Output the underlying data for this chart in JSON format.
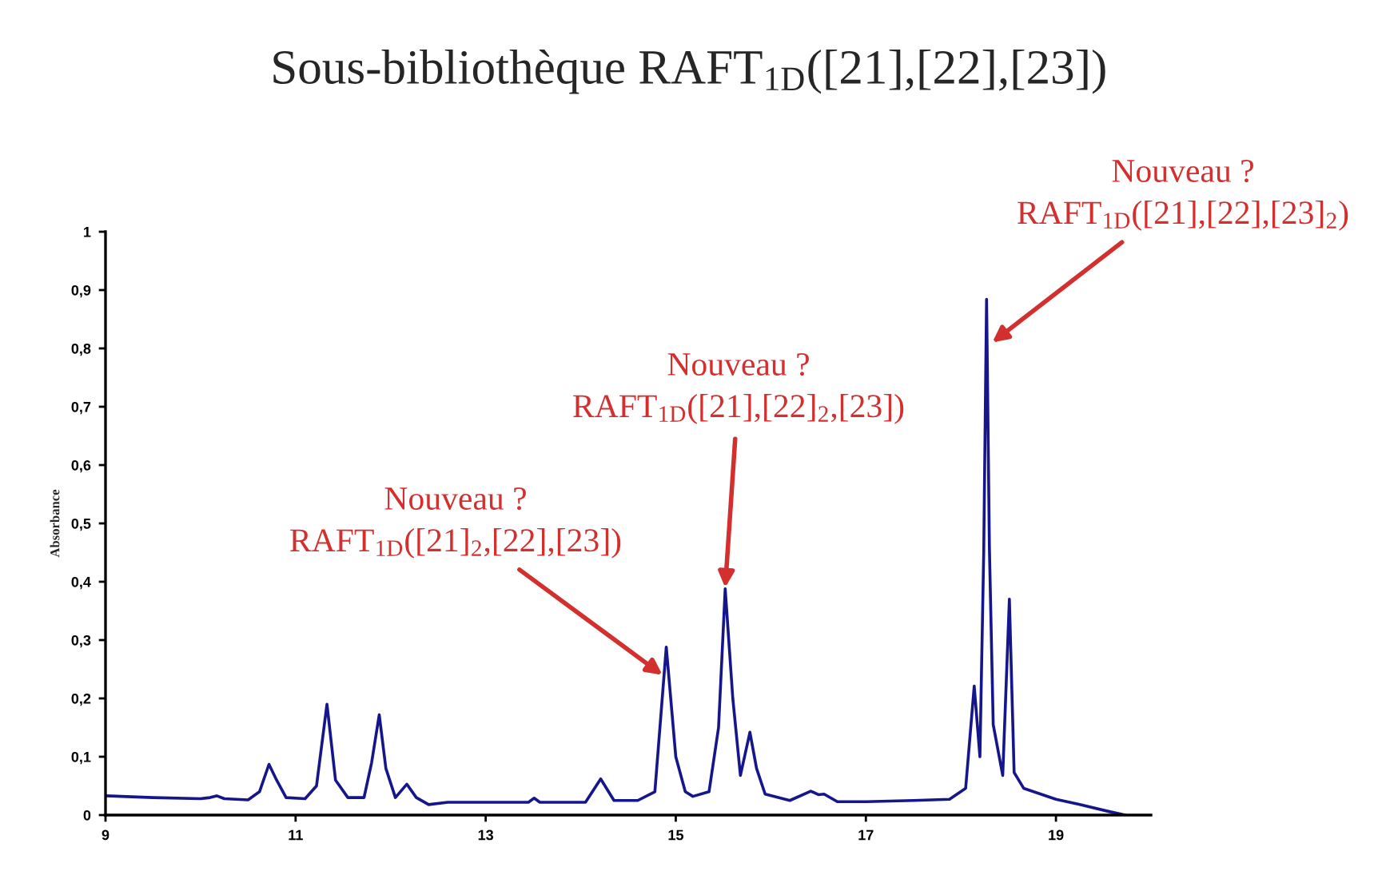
{
  "chart_data": {
    "type": "line",
    "title": "Sous-bibliothèque RAFT$_{1D}$([21],[22],[23])",
    "ylabel": "Absorbance",
    "x": [
      9.0,
      9.5,
      10.0,
      10.1,
      10.17,
      10.25,
      10.5,
      10.62,
      10.72,
      10.8,
      10.9,
      11.1,
      11.22,
      11.33,
      11.42,
      11.55,
      11.72,
      11.8,
      11.88,
      11.95,
      12.05,
      12.17,
      12.27,
      12.4,
      12.6,
      13.0,
      13.45,
      13.51,
      13.57,
      14.05,
      14.21,
      14.35,
      14.6,
      14.78,
      14.9,
      15.0,
      15.1,
      15.18,
      15.35,
      15.45,
      15.52,
      15.6,
      15.68,
      15.78,
      15.85,
      15.94,
      16.2,
      16.42,
      16.5,
      16.56,
      16.7,
      17.0,
      17.5,
      17.88,
      18.05,
      18.14,
      18.2,
      18.24,
      18.27,
      18.3,
      18.34,
      18.44,
      18.51,
      18.56,
      18.66,
      19.0,
      19.25,
      19.56,
      19.73
    ],
    "series": [
      {
        "color": "#15158c",
        "values": [
          0.033,
          0.03,
          0.028,
          0.03,
          0.033,
          0.028,
          0.026,
          0.04,
          0.087,
          0.06,
          0.03,
          0.028,
          0.05,
          0.19,
          0.06,
          0.03,
          0.03,
          0.09,
          0.172,
          0.08,
          0.03,
          0.053,
          0.03,
          0.018,
          0.022,
          0.022,
          0.022,
          0.029,
          0.022,
          0.022,
          0.062,
          0.025,
          0.025,
          0.04,
          0.288,
          0.1,
          0.04,
          0.032,
          0.04,
          0.15,
          0.388,
          0.2,
          0.068,
          0.142,
          0.08,
          0.036,
          0.025,
          0.041,
          0.035,
          0.036,
          0.023,
          0.023,
          0.025,
          0.027,
          0.046,
          0.221,
          0.1,
          0.45,
          0.884,
          0.457,
          0.155,
          0.068,
          0.37,
          0.073,
          0.046,
          0.027,
          0.018,
          0.006,
          0.0
        ]
      }
    ],
    "xlim": [
      9,
      20
    ],
    "xticks": [
      9,
      11,
      13,
      15,
      17,
      19
    ],
    "ylim": [
      0,
      1
    ],
    "yticks": [
      0,
      {
        "value": 0.1,
        "label": "0,1"
      },
      {
        "value": 0.2,
        "label": "0,2"
      },
      {
        "value": 0.3,
        "label": "0,3"
      },
      {
        "value": 0.4,
        "label": "0,4"
      },
      {
        "value": 0.5,
        "label": "0,5"
      },
      {
        "value": 0.6,
        "label": "0,6"
      },
      {
        "value": 0.7,
        "label": "0,7"
      },
      {
        "value": 0.8,
        "label": "0,8"
      },
      {
        "value": 0.9,
        "label": "0,9"
      },
      1
    ],
    "annotations": [
      {
        "text": "Nouveau ?\nRAFT$_{1D}$([21]$_{2}$,[22],[23])",
        "x": 14.86,
        "y": 0.24
      },
      {
        "text": "Nouveau ?\nRAFT$_{1D}$([21],[22]$_{2}$,[23])",
        "x": 15.52,
        "y": 0.39
      },
      {
        "text": "Nouveau ?\nRAFT$_{1D}$([21],[22],[23]$_{2}$)",
        "x": 18.33,
        "y": 0.81
      }
    ],
    "grid": false,
    "legend": false,
    "marker": "none",
    "line_style": "solid"
  }
}
